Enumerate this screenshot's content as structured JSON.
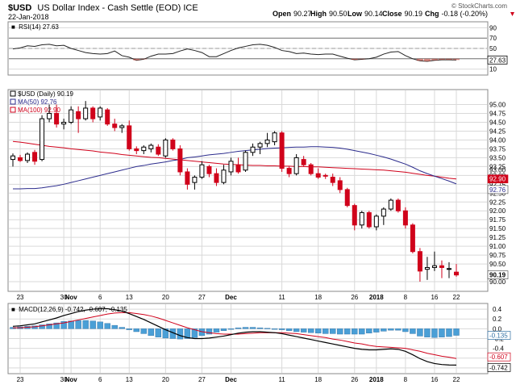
{
  "header": {
    "symbol": "$USD",
    "name": "US Dollar Index - Cash Settle (EOD) ICE",
    "date": "22-Jan-2018",
    "watermark": "© StockCharts.com",
    "ohlc": [
      {
        "label": "Open",
        "value": "90.27"
      },
      {
        "label": "High",
        "value": "90.50"
      },
      {
        "label": "Low",
        "value": "90.14"
      },
      {
        "label": "Close",
        "value": "90.19"
      },
      {
        "label": "Chg",
        "value": "-0.18 (-0.20%)"
      }
    ],
    "chg_icon": "down-triangle-icon"
  },
  "colors": {
    "up": "#000000",
    "down": "#d0021b",
    "ma50": "#2b2b8c",
    "ma100": "#d0021b",
    "macd_hist": "#4a9fd6",
    "rsi_line": "#222222",
    "grid": "#d9d9d9"
  },
  "chart_data": [
    {
      "type": "line",
      "panel": "rsi",
      "legend": "RSI(14) 27.63",
      "ylim": [
        0,
        100
      ],
      "yticks": [
        "90",
        "70",
        "50",
        "30",
        "10"
      ],
      "last_value_label": "27.63",
      "reference_lines": [
        70,
        50,
        30
      ],
      "values": [
        49,
        51,
        55,
        54,
        57,
        58,
        55,
        56,
        50,
        46,
        42,
        40,
        39,
        40,
        45,
        36,
        33,
        27,
        29,
        35,
        39,
        39,
        40,
        45,
        49,
        46,
        42,
        34,
        34,
        40,
        46,
        51,
        54,
        57,
        58,
        56,
        52,
        46,
        44,
        40,
        41,
        39,
        38,
        39,
        39,
        35,
        31,
        28,
        29,
        30,
        33,
        39,
        43,
        44,
        36,
        30,
        26,
        25,
        27,
        28,
        28,
        27.63
      ]
    },
    {
      "type": "candlestick",
      "panel": "price",
      "series_legend": [
        {
          "name": "$USD (Daily) 90.19"
        },
        {
          "name": "MA(50) 92.76"
        },
        {
          "name": "MA(100) 92.90"
        }
      ],
      "ylim": [
        89.75,
        95.4
      ],
      "yticks": [
        "95.00",
        "94.75",
        "94.50",
        "94.25",
        "94.00",
        "93.75",
        "93.50",
        "93.25",
        "93.00",
        "92.75",
        "92.50",
        "92.25",
        "92.00",
        "91.75",
        "91.50",
        "91.25",
        "91.00",
        "90.75",
        "90.50",
        "90.00"
      ],
      "right_labels": [
        "93.00",
        "92.90",
        "92.76",
        "90.19"
      ],
      "x_tick_labels": [
        {
          "text": "23",
          "bold": false
        },
        {
          "text": "30",
          "bold": false
        },
        {
          "text": "Nov",
          "bold": true
        },
        {
          "text": "6",
          "bold": false
        },
        {
          "text": "13",
          "bold": false
        },
        {
          "text": "20",
          "bold": false
        },
        {
          "text": "27",
          "bold": false
        },
        {
          "text": "Dec",
          "bold": true
        },
        {
          "text": "11",
          "bold": false
        },
        {
          "text": "18",
          "bold": false
        },
        {
          "text": "26",
          "bold": false
        },
        {
          "text": "2018",
          "bold": true
        },
        {
          "text": "8",
          "bold": false
        },
        {
          "text": "16",
          "bold": false
        },
        {
          "text": "22",
          "bold": false
        }
      ],
      "candles": [
        {
          "o": 93.45,
          "h": 93.62,
          "l": 93.25,
          "c": 93.55
        },
        {
          "o": 93.5,
          "h": 93.58,
          "l": 93.38,
          "c": 93.42
        },
        {
          "o": 93.42,
          "h": 93.65,
          "l": 93.35,
          "c": 93.6
        },
        {
          "o": 93.65,
          "h": 93.72,
          "l": 93.3,
          "c": 93.4
        },
        {
          "o": 93.45,
          "h": 94.7,
          "l": 93.4,
          "c": 94.6
        },
        {
          "o": 94.6,
          "h": 95.0,
          "l": 94.5,
          "c": 94.75
        },
        {
          "o": 94.75,
          "h": 95.0,
          "l": 94.35,
          "c": 94.45
        },
        {
          "o": 94.45,
          "h": 94.6,
          "l": 94.3,
          "c": 94.5
        },
        {
          "o": 94.5,
          "h": 94.95,
          "l": 94.45,
          "c": 94.85
        },
        {
          "o": 94.8,
          "h": 94.95,
          "l": 94.2,
          "c": 94.6
        },
        {
          "o": 94.6,
          "h": 95.1,
          "l": 94.55,
          "c": 94.9
        },
        {
          "o": 94.9,
          "h": 94.95,
          "l": 94.5,
          "c": 94.6
        },
        {
          "o": 94.65,
          "h": 94.95,
          "l": 94.55,
          "c": 94.9
        },
        {
          "o": 94.85,
          "h": 94.9,
          "l": 94.4,
          "c": 94.45
        },
        {
          "o": 94.45,
          "h": 94.6,
          "l": 94.25,
          "c": 94.35
        },
        {
          "o": 94.35,
          "h": 94.45,
          "l": 94.2,
          "c": 94.4
        },
        {
          "o": 94.4,
          "h": 94.55,
          "l": 93.7,
          "c": 93.75
        },
        {
          "o": 93.75,
          "h": 93.82,
          "l": 93.6,
          "c": 93.7
        },
        {
          "o": 93.7,
          "h": 93.85,
          "l": 93.6,
          "c": 93.8
        },
        {
          "o": 93.75,
          "h": 93.9,
          "l": 93.65,
          "c": 93.85
        },
        {
          "o": 93.8,
          "h": 93.88,
          "l": 93.55,
          "c": 93.6
        },
        {
          "o": 93.55,
          "h": 94.05,
          "l": 93.5,
          "c": 94.0
        },
        {
          "o": 94.0,
          "h": 94.05,
          "l": 93.7,
          "c": 93.75
        },
        {
          "o": 93.75,
          "h": 93.85,
          "l": 93.0,
          "c": 93.1
        },
        {
          "o": 93.1,
          "h": 93.2,
          "l": 92.6,
          "c": 92.75
        },
        {
          "o": 92.8,
          "h": 93.0,
          "l": 92.6,
          "c": 92.95
        },
        {
          "o": 92.95,
          "h": 93.4,
          "l": 92.9,
          "c": 93.3
        },
        {
          "o": 93.25,
          "h": 93.3,
          "l": 92.95,
          "c": 93.05
        },
        {
          "o": 93.05,
          "h": 93.2,
          "l": 92.7,
          "c": 92.8
        },
        {
          "o": 92.8,
          "h": 93.3,
          "l": 92.75,
          "c": 93.15
        },
        {
          "o": 93.1,
          "h": 93.5,
          "l": 93.0,
          "c": 93.4
        },
        {
          "o": 93.3,
          "h": 93.5,
          "l": 93.05,
          "c": 93.1
        },
        {
          "o": 93.15,
          "h": 93.7,
          "l": 93.1,
          "c": 93.65
        },
        {
          "o": 93.65,
          "h": 93.9,
          "l": 93.55,
          "c": 93.8
        },
        {
          "o": 93.8,
          "h": 93.95,
          "l": 93.6,
          "c": 93.9
        },
        {
          "o": 93.9,
          "h": 94.2,
          "l": 93.8,
          "c": 94.0
        },
        {
          "o": 93.95,
          "h": 94.25,
          "l": 93.85,
          "c": 94.2
        },
        {
          "o": 94.2,
          "h": 94.25,
          "l": 93.1,
          "c": 93.2
        },
        {
          "o": 93.2,
          "h": 93.25,
          "l": 92.95,
          "c": 93.05
        },
        {
          "o": 93.05,
          "h": 93.6,
          "l": 93.0,
          "c": 93.5
        },
        {
          "o": 93.45,
          "h": 93.55,
          "l": 93.25,
          "c": 93.3
        },
        {
          "o": 93.3,
          "h": 93.35,
          "l": 93.0,
          "c": 93.05
        },
        {
          "o": 93.05,
          "h": 93.2,
          "l": 92.9,
          "c": 92.95
        },
        {
          "o": 93.0,
          "h": 93.05,
          "l": 92.9,
          "c": 92.98
        },
        {
          "o": 92.95,
          "h": 93.05,
          "l": 92.7,
          "c": 92.8
        },
        {
          "o": 92.85,
          "h": 92.95,
          "l": 92.5,
          "c": 92.6
        },
        {
          "o": 92.6,
          "h": 92.65,
          "l": 92.1,
          "c": 92.15
        },
        {
          "o": 92.15,
          "h": 92.2,
          "l": 91.45,
          "c": 91.6
        },
        {
          "o": 91.6,
          "h": 92.0,
          "l": 91.5,
          "c": 91.95
        },
        {
          "o": 91.95,
          "h": 92.0,
          "l": 91.5,
          "c": 91.55
        },
        {
          "o": 91.55,
          "h": 91.9,
          "l": 91.45,
          "c": 91.85
        },
        {
          "o": 91.85,
          "h": 92.1,
          "l": 91.6,
          "c": 92.05
        },
        {
          "o": 92.05,
          "h": 92.35,
          "l": 92.0,
          "c": 92.3
        },
        {
          "o": 92.3,
          "h": 92.35,
          "l": 91.95,
          "c": 92.0
        },
        {
          "o": 92.0,
          "h": 92.1,
          "l": 91.5,
          "c": 91.6
        },
        {
          "o": 91.6,
          "h": 91.65,
          "l": 90.8,
          "c": 90.85
        },
        {
          "o": 90.85,
          "h": 90.95,
          "l": 90.0,
          "c": 90.3
        },
        {
          "o": 90.35,
          "h": 90.7,
          "l": 90.05,
          "c": 90.4
        },
        {
          "o": 90.4,
          "h": 90.85,
          "l": 90.3,
          "c": 90.45
        },
        {
          "o": 90.45,
          "h": 90.6,
          "l": 90.1,
          "c": 90.4
        },
        {
          "o": 90.35,
          "h": 90.55,
          "l": 90.1,
          "c": 90.37
        },
        {
          "o": 90.27,
          "h": 90.5,
          "l": 90.14,
          "c": 90.19
        }
      ],
      "ma50": [
        92.62,
        92.62,
        92.63,
        92.63,
        92.65,
        92.68,
        92.71,
        92.75,
        92.8,
        92.85,
        92.9,
        92.95,
        93.0,
        93.05,
        93.1,
        93.15,
        93.2,
        93.25,
        93.28,
        93.32,
        93.35,
        93.38,
        93.42,
        93.45,
        93.5,
        93.52,
        93.55,
        93.58,
        93.6,
        93.62,
        93.65,
        93.68,
        93.7,
        93.72,
        93.74,
        93.76,
        93.77,
        93.78,
        93.79,
        93.8,
        93.8,
        93.81,
        93.81,
        93.8,
        93.79,
        93.77,
        93.74,
        93.7,
        93.66,
        93.62,
        93.57,
        93.52,
        93.46,
        93.39,
        93.32,
        93.23,
        93.13,
        93.05,
        92.98,
        92.91,
        92.84,
        92.76
      ],
      "ma100": [
        93.96,
        93.94,
        93.91,
        93.88,
        93.85,
        93.82,
        93.8,
        93.78,
        93.75,
        93.73,
        93.71,
        93.69,
        93.66,
        93.64,
        93.62,
        93.59,
        93.57,
        93.55,
        93.53,
        93.51,
        93.5,
        93.48,
        93.46,
        93.44,
        93.42,
        93.4,
        93.38,
        93.36,
        93.34,
        93.32,
        93.31,
        93.3,
        93.29,
        93.28,
        93.28,
        93.27,
        93.27,
        93.26,
        93.26,
        93.25,
        93.25,
        93.24,
        93.24,
        93.23,
        93.22,
        93.21,
        93.2,
        93.19,
        93.18,
        93.17,
        93.16,
        93.15,
        93.13,
        93.11,
        93.09,
        93.06,
        93.03,
        93.0,
        92.98,
        92.95,
        92.92,
        92.9
      ]
    },
    {
      "type": "line",
      "panel": "macd",
      "legend": "MACD(12,26,9) -0.742, -0.607, -0.135",
      "ylim": [
        -0.9,
        0.5
      ],
      "yticks": [
        "0.4",
        "0.2",
        "0.0",
        "-0.2",
        "-0.4",
        "-0.6",
        "-0.8"
      ],
      "right_labels": [
        "-0.135",
        "-0.607",
        "-0.742"
      ],
      "series": [
        {
          "name": "MACD",
          "values": [
            0.05,
            0.06,
            0.08,
            0.1,
            0.14,
            0.18,
            0.22,
            0.27,
            0.31,
            0.35,
            0.38,
            0.4,
            0.41,
            0.41,
            0.39,
            0.36,
            0.31,
            0.25,
            0.19,
            0.12,
            0.05,
            -0.02,
            -0.08,
            -0.14,
            -0.18,
            -0.2,
            -0.2,
            -0.19,
            -0.17,
            -0.15,
            -0.12,
            -0.09,
            -0.07,
            -0.06,
            -0.06,
            -0.07,
            -0.08,
            -0.1,
            -0.13,
            -0.16,
            -0.19,
            -0.22,
            -0.25,
            -0.28,
            -0.31,
            -0.34,
            -0.37,
            -0.4,
            -0.42,
            -0.43,
            -0.43,
            -0.42,
            -0.41,
            -0.42,
            -0.46,
            -0.53,
            -0.61,
            -0.67,
            -0.71,
            -0.73,
            -0.74,
            -0.742
          ]
        },
        {
          "name": "Signal",
          "values": [
            0.02,
            0.02,
            0.03,
            0.04,
            0.06,
            0.08,
            0.1,
            0.12,
            0.15,
            0.18,
            0.21,
            0.24,
            0.27,
            0.3,
            0.32,
            0.33,
            0.33,
            0.31,
            0.29,
            0.26,
            0.22,
            0.17,
            0.12,
            0.07,
            0.02,
            -0.02,
            -0.06,
            -0.08,
            -0.1,
            -0.11,
            -0.11,
            -0.11,
            -0.1,
            -0.09,
            -0.08,
            -0.08,
            -0.08,
            -0.08,
            -0.09,
            -0.1,
            -0.12,
            -0.14,
            -0.16,
            -0.18,
            -0.21,
            -0.23,
            -0.26,
            -0.29,
            -0.31,
            -0.34,
            -0.36,
            -0.37,
            -0.38,
            -0.39,
            -0.4,
            -0.43,
            -0.46,
            -0.5,
            -0.53,
            -0.56,
            -0.58,
            -0.607
          ]
        },
        {
          "name": "Histogram",
          "values": [
            0.03,
            0.04,
            0.05,
            0.06,
            0.08,
            0.1,
            0.12,
            0.15,
            0.16,
            0.17,
            0.17,
            0.16,
            0.14,
            0.11,
            0.07,
            0.03,
            -0.02,
            -0.06,
            -0.1,
            -0.14,
            -0.17,
            -0.19,
            -0.2,
            -0.21,
            -0.2,
            -0.18,
            -0.14,
            -0.11,
            -0.07,
            -0.04,
            -0.01,
            0.02,
            0.03,
            0.03,
            0.02,
            0.01,
            0.0,
            -0.02,
            -0.04,
            -0.06,
            -0.07,
            -0.08,
            -0.09,
            -0.1,
            -0.1,
            -0.11,
            -0.11,
            -0.11,
            -0.11,
            -0.09,
            -0.07,
            -0.05,
            -0.03,
            -0.03,
            -0.06,
            -0.1,
            -0.15,
            -0.17,
            -0.18,
            -0.17,
            -0.16,
            -0.135
          ]
        }
      ]
    }
  ]
}
